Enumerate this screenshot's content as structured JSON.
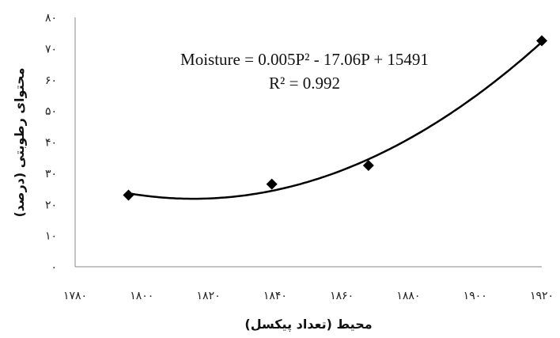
{
  "chart_data": {
    "type": "scatter",
    "xlabel": "محیط (تعداد پیکسل)",
    "ylabel": "محتوای رطوبتی (درصد)",
    "xlim": [
      1780,
      1920
    ],
    "ylim": [
      0,
      80
    ],
    "x_ticks": [
      1780,
      1800,
      1820,
      1840,
      1860,
      1880,
      1900,
      1920
    ],
    "y_ticks": [
      0,
      10,
      20,
      30,
      40,
      50,
      60,
      70,
      80
    ],
    "x_tick_labels": [
      "۱۷۸۰",
      "۱۸۰۰",
      "۱۸۲۰",
      "۱۸۴۰",
      "۱۸۶۰",
      "۱۸۸۰",
      "۱۹۰۰",
      "۱۹۲۰"
    ],
    "y_tick_labels": [
      "۰",
      "۱۰",
      "۲۰",
      "۳۰",
      "۴۰",
      "۵۰",
      "۶۰",
      "۷۰",
      "۸۰"
    ],
    "series": [
      {
        "marker": "diamond",
        "color": "#000000",
        "points": [
          {
            "x": 1796,
            "y": 23
          },
          {
            "x": 1839,
            "y": 26.5
          },
          {
            "x": 1868,
            "y": 32.5
          },
          {
            "x": 1920,
            "y": 72.5
          }
        ]
      }
    ],
    "trendline": {
      "type": "polynomial-2",
      "color": "#000000",
      "coefficients": [
        0.005,
        -17.06,
        15491
      ],
      "equation": "Moisture = 0.005P² - 17.06P + 15491",
      "r2_label": "R² = 0.992"
    },
    "grid": false,
    "legend": "none"
  }
}
